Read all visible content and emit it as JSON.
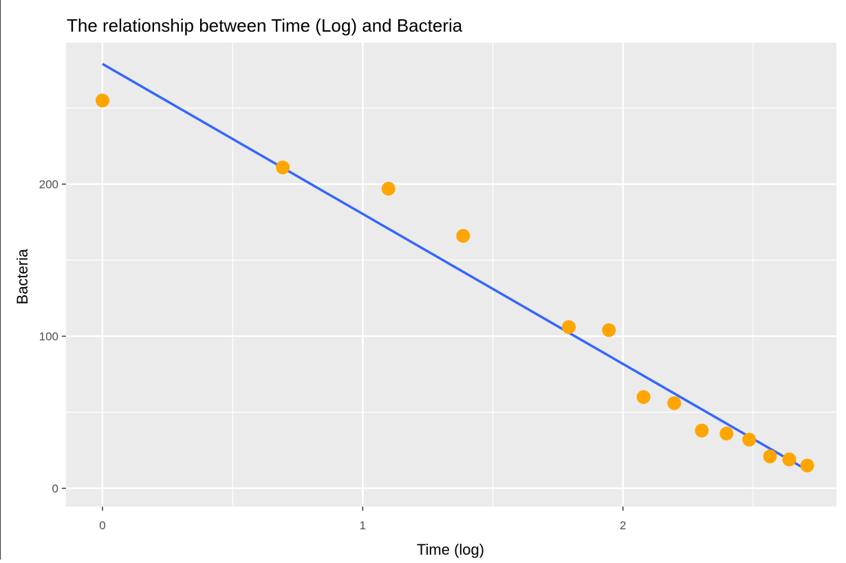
{
  "chart_data": {
    "type": "scatter",
    "title": "The relationship between Time (Log) and Bacteria",
    "xlabel": "Time (log)",
    "ylabel": "Bacteria",
    "xlim": [
      -0.14,
      2.82
    ],
    "ylim": [
      -12,
      293
    ],
    "x_ticks": [
      0,
      1,
      2
    ],
    "y_ticks": [
      0,
      100,
      200
    ],
    "x_minor": [
      0.5,
      1.5,
      2.5
    ],
    "y_minor": [
      50,
      150,
      250
    ],
    "grid": true,
    "legend": "none",
    "series": [
      {
        "kind": "points",
        "x": [
          0.0,
          0.693,
          1.099,
          1.386,
          1.792,
          1.946,
          2.079,
          2.197,
          2.303,
          2.398,
          2.485,
          2.565,
          2.639,
          2.708
        ],
        "y": [
          255,
          211,
          197,
          166,
          106,
          104,
          60,
          56,
          38,
          36,
          32,
          21,
          19,
          15
        ]
      },
      {
        "kind": "fit-line",
        "x": [
          0,
          2.708
        ],
        "y": [
          279,
          12
        ]
      }
    ],
    "colors": {
      "panel": "#EBEBEB",
      "grid": "#FFFFFF",
      "points": "#FFA500",
      "line": "#3366FF",
      "text": "#000000",
      "tick_text": "#4D4D4D",
      "tick_mark": "#333333"
    }
  }
}
